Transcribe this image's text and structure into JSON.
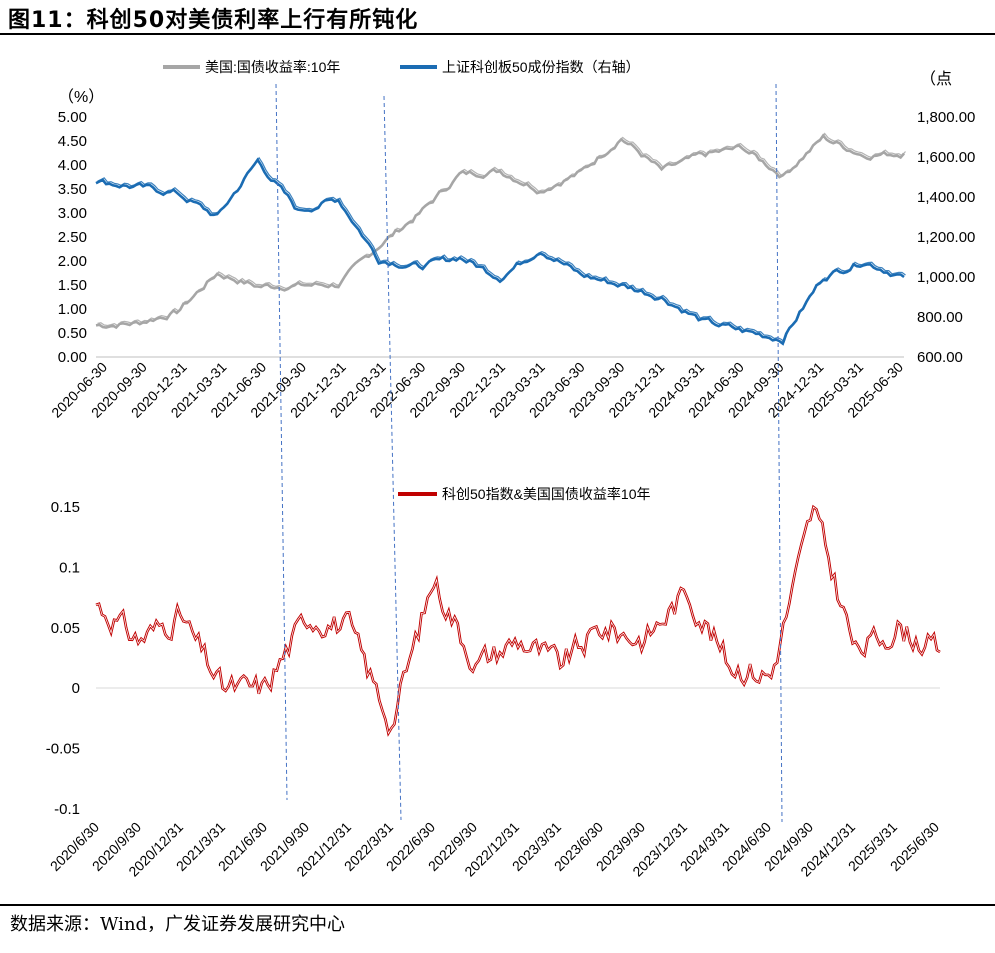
{
  "figure": {
    "title": "图11：科创50对美债利率上行有所钝化",
    "source": "数据来源：Wind，广发证券发展研究中心"
  },
  "colors": {
    "gray": "#a6a6a6",
    "blue": "#1b6cb3",
    "red": "#c00000",
    "vline": "#4472c4"
  },
  "chart_data": [
    {
      "type": "line",
      "title": "",
      "legend": [
        "美国:国债收益率:10年",
        "上证科创板50成份指数（右轴）"
      ],
      "legend_position": "top",
      "ylabel_left": "（%）",
      "ylabel_right": "（点",
      "ylim_left": [
        0,
        5
      ],
      "ylim_right": [
        600,
        1800
      ],
      "y_ticks_left": [
        "5.00",
        "4.50",
        "4.00",
        "3.50",
        "3.00",
        "2.50",
        "2.00",
        "1.50",
        "1.00",
        "0.50",
        "0.00"
      ],
      "y_ticks_right": [
        "1,800.00",
        "1,600.00",
        "1,400.00",
        "1,200.00",
        "1,000.00",
        "800.00",
        "600.00"
      ],
      "x_ticks": [
        "2020-06-30",
        "2020-09-30",
        "2020-12-31",
        "2021-03-31",
        "2021-06-30",
        "2021-09-30",
        "2021-12-31",
        "2022-03-31",
        "2022-06-30",
        "2022-09-30",
        "2022-12-31",
        "2023-03-31",
        "2023-06-30",
        "2023-09-30",
        "2023-12-31",
        "2024-03-31",
        "2024-06-30",
        "2024-09-30",
        "2024-12-31",
        "2025-03-31",
        "2025-06-30"
      ],
      "series": [
        {
          "name": "美国:国债收益率:10年",
          "axis": "left",
          "values": [
            0.66,
            0.7,
            0.93,
            1.74,
            1.47,
            1.49,
            1.51,
            2.32,
            2.98,
            3.8,
            3.88,
            3.48,
            3.84,
            4.57,
            3.88,
            4.2,
            4.36,
            3.78,
            4.57,
            4.21,
            4.24
          ]
        },
        {
          "name": "上证科创板50成份指数（右轴）",
          "axis": "right",
          "values": [
            1480,
            1450,
            1420,
            1300,
            1580,
            1330,
            1390,
            1090,
            1050,
            1100,
            1000,
            1140,
            1010,
            960,
            900,
            780,
            730,
            690,
            1000,
            1080,
            1000
          ]
        }
      ]
    },
    {
      "type": "line",
      "title": "",
      "legend": [
        "科创50指数&美国国债收益率10年"
      ],
      "legend_position": "top",
      "ylim": [
        -0.1,
        0.15
      ],
      "y_ticks": [
        "0.15",
        "0.1",
        "0.05",
        "0",
        "-0.05",
        "-0.1"
      ],
      "x_ticks": [
        "2020/6/30",
        "2020/9/30",
        "2020/12/31",
        "2021/3/31",
        "2021/6/30",
        "2021/9/30",
        "2021/12/31",
        "2022/3/31",
        "2022/6/30",
        "2022/9/30",
        "2022/12/31",
        "2023/3/31",
        "2023/6/30",
        "2023/9/30",
        "2023/12/31",
        "2024/3/31",
        "2024/6/30",
        "2024/9/30",
        "2024/12/31",
        "2025/3/31",
        "2025/6/30"
      ],
      "series": [
        {
          "name": "科创50指数&美国国债收益率10年",
          "values": [
            0.07,
            0.04,
            0.06,
            0.0,
            0.0,
            0.06,
            0.05,
            -0.03,
            0.09,
            0.02,
            0.04,
            0.02,
            0.05,
            0.04,
            0.08,
            0.02,
            0.01,
            0.15,
            0.03,
            0.05,
            0.03
          ]
        }
      ]
    }
  ]
}
